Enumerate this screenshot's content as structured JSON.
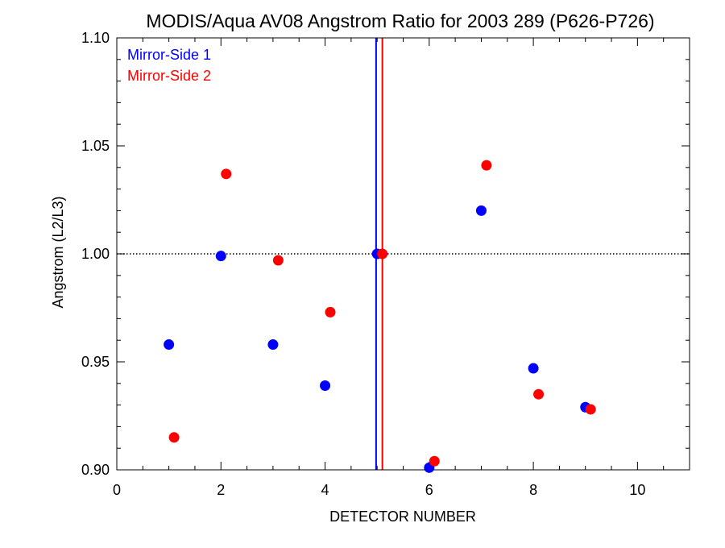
{
  "chart_data": {
    "type": "scatter",
    "title": "MODIS/Aqua AV08 Angstrom Ratio for 2003 289 (P626-P726)",
    "xlabel": "DETECTOR NUMBER",
    "ylabel": "Angstrom (L2/L3)",
    "xlim": [
      0,
      11
    ],
    "ylim": [
      0.9,
      1.1
    ],
    "x_ticks": [
      0,
      2,
      4,
      6,
      8,
      10
    ],
    "x_tick_labels": [
      "0",
      "2",
      "4",
      "6",
      "8",
      "10"
    ],
    "y_ticks": [
      0.9,
      0.95,
      1.0,
      1.05,
      1.1
    ],
    "y_tick_labels": [
      "0.90",
      "0.95",
      "1.00",
      "1.05",
      "1.10"
    ],
    "x_minor_step": 0.5,
    "y_minor_step": 0.01,
    "reference_line": {
      "y": 1.0,
      "style": "dotted",
      "color": "#000000"
    },
    "vertical_lines": [
      {
        "x": 4.98,
        "color": "#0000ff"
      },
      {
        "x": 5.1,
        "color": "#ff0000"
      }
    ],
    "legend_position": "top-left",
    "series": [
      {
        "name": "Mirror-Side 1",
        "color": "#0000ff",
        "x": [
          1,
          2,
          3,
          4,
          5,
          6,
          7,
          8,
          9
        ],
        "y": [
          0.958,
          0.999,
          0.958,
          0.939,
          1.0,
          0.901,
          1.02,
          0.947,
          0.929
        ]
      },
      {
        "name": "Mirror-Side 2",
        "color": "#ff0000",
        "x": [
          1.1,
          2.1,
          3.1,
          4.1,
          5.1,
          6.1,
          7.1,
          8.1,
          9.1
        ],
        "y": [
          0.915,
          1.037,
          0.997,
          0.973,
          1.0,
          0.904,
          1.041,
          0.935,
          0.928
        ]
      }
    ]
  }
}
